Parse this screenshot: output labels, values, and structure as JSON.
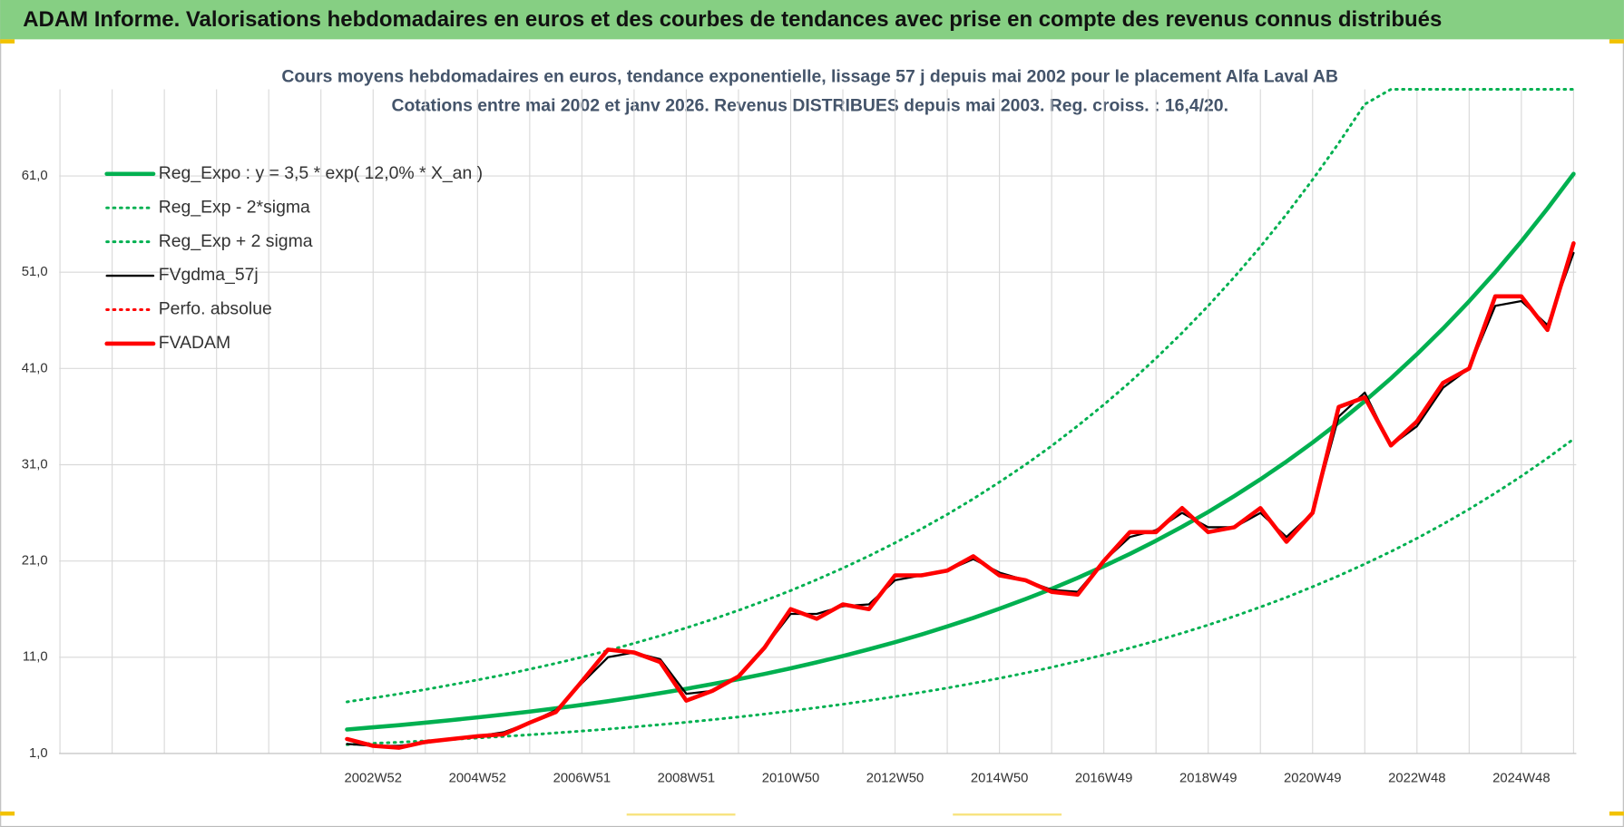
{
  "header": {
    "title": "ADAM Informe. Valorisations hebdomadaires en euros et des courbes de tendances avec prise en compte des revenus connus distribués"
  },
  "chart_data": {
    "type": "line",
    "title": "Cours moyens hebdomadaires en euros, tendance exponentielle, lissage 57 j depuis mai 2002 pour le placement Alfa Laval AB",
    "subtitle": "Cotations entre mai 2002 et janv 2026. Revenus DISTRIBUES depuis mai 2003. Reg. croiss. : 16,4/20.",
    "categories": [
      null,
      "2002W52",
      null,
      null,
      null,
      "2004W52",
      null,
      null,
      null,
      "2006W51",
      null,
      null,
      null,
      "2008W51",
      null,
      null,
      null,
      "2010W50",
      null,
      null,
      null,
      "2012W50",
      null,
      null,
      null,
      "2014W50",
      null,
      null,
      null,
      "2016W49",
      null,
      null,
      null,
      "2018W49",
      null,
      null,
      null,
      "2020W49",
      null,
      null,
      null,
      "2022W48",
      null,
      null,
      null,
      "2024W48",
      null,
      null
    ],
    "ylim": [
      1,
      70
    ],
    "yticks": [
      {
        "value": 1,
        "label": "1,0"
      },
      {
        "value": 11,
        "label": "11,0"
      },
      {
        "value": 21,
        "label": "21,0"
      },
      {
        "value": 31,
        "label": "31,0"
      },
      {
        "value": 41,
        "label": "41,0"
      },
      {
        "value": 51,
        "label": "51,0"
      },
      {
        "value": 61,
        "label": "61,0"
      }
    ],
    "grid": true,
    "legend": "top-left",
    "series": [
      {
        "name": "Reg_Expo : y = 3,5 * exp( 12,0% *  X_an )",
        "color": "#00b050",
        "style": "thick",
        "values": [
          3.5,
          3.72,
          3.95,
          4.2,
          4.47,
          4.75,
          5.04,
          5.36,
          5.7,
          6.05,
          6.43,
          6.84,
          7.27,
          7.72,
          8.21,
          8.72,
          9.27,
          9.85,
          10.47,
          11.13,
          11.83,
          12.57,
          13.36,
          14.2,
          15.09,
          16.04,
          17.04,
          18.11,
          19.25,
          20.46,
          21.74,
          23.11,
          24.56,
          26.1,
          27.74,
          29.48,
          31.33,
          33.3,
          35.39,
          37.61,
          39.97,
          42.48,
          45.15,
          47.99,
          51.0,
          54.2,
          57.61,
          61.22
        ]
      },
      {
        "name": "Reg_Exp - 2*sigma",
        "color": "#00b050",
        "style": "dotted",
        "values": [
          1.93,
          2.05,
          2.17,
          2.31,
          2.46,
          2.61,
          2.77,
          2.95,
          3.14,
          3.33,
          3.54,
          3.76,
          4.0,
          4.25,
          4.52,
          4.8,
          5.1,
          5.42,
          5.76,
          6.12,
          6.51,
          6.91,
          7.35,
          7.81,
          8.3,
          8.82,
          9.37,
          9.96,
          10.59,
          11.25,
          11.96,
          12.71,
          13.51,
          14.36,
          15.26,
          16.21,
          17.23,
          18.32,
          19.46,
          20.69,
          21.98,
          23.36,
          24.83,
          26.39,
          28.05,
          29.81,
          31.69,
          33.67
        ]
      },
      {
        "name": "Reg_Exp + 2 sigma",
        "color": "#00b050",
        "style": "dotted",
        "values": [
          6.37,
          6.77,
          7.19,
          7.64,
          8.14,
          8.65,
          9.17,
          9.76,
          10.37,
          11.01,
          11.7,
          12.45,
          13.23,
          14.05,
          14.94,
          15.87,
          16.87,
          17.93,
          19.06,
          20.26,
          21.53,
          22.88,
          24.32,
          25.84,
          27.46,
          29.19,
          31.01,
          32.96,
          35.04,
          37.24,
          39.57,
          42.06,
          44.7,
          47.5,
          50.49,
          53.65,
          57.02,
          60.61,
          64.41,
          68.45,
          70,
          70,
          70,
          70,
          70,
          70,
          70,
          70
        ]
      },
      {
        "name": "FVgdma_57j",
        "color": "#000000",
        "style": "thin",
        "values": [
          2.0,
          1.8,
          1.8,
          2.1,
          2.5,
          2.8,
          3.2,
          4.2,
          5.5,
          8.3,
          11.0,
          11.5,
          10.8,
          7.2,
          7.5,
          9.0,
          12.0,
          15.5,
          15.5,
          16.3,
          16.5,
          19.0,
          19.5,
          20.0,
          21.2,
          19.8,
          19.0,
          18.0,
          17.8,
          21.0,
          23.5,
          24.2,
          26.0,
          24.5,
          24.5,
          26.0,
          23.5,
          26.0,
          36.0,
          38.5,
          33.0,
          35.0,
          39.0,
          41.0,
          47.5,
          48.0,
          45.5,
          53.0
        ]
      },
      {
        "name": "Perfo. absolue",
        "color": "#ff0000",
        "style": "dotted",
        "values": [
          2.5,
          1.8,
          1.6,
          2.2,
          2.5,
          2.8,
          3.0,
          4.2,
          5.3,
          8.5,
          11.8,
          11.5,
          10.5,
          6.5,
          7.5,
          9.0,
          12.0,
          16.0,
          15.0,
          16.5,
          16.0,
          19.5,
          19.5,
          20.0,
          21.5,
          19.5,
          19.0,
          17.8,
          17.5,
          21.0,
          24.0,
          24.0,
          26.5,
          24.0,
          24.5,
          26.5,
          23.0,
          26.0,
          37.0,
          38.0,
          33.0,
          35.5,
          39.5,
          41.0,
          48.5,
          48.5,
          45.0,
          54.0
        ]
      },
      {
        "name": "FVADAM",
        "color": "#ff0000",
        "style": "thick",
        "values": [
          2.5,
          1.8,
          1.6,
          2.2,
          2.5,
          2.8,
          3.0,
          4.2,
          5.3,
          8.5,
          11.8,
          11.5,
          10.5,
          6.5,
          7.5,
          9.0,
          12.0,
          16.0,
          15.0,
          16.5,
          16.0,
          19.5,
          19.5,
          20.0,
          21.5,
          19.5,
          19.0,
          17.8,
          17.5,
          21.0,
          24.0,
          24.0,
          26.5,
          24.0,
          24.5,
          26.5,
          23.0,
          26.0,
          37.0,
          38.0,
          33.0,
          35.5,
          39.5,
          41.0,
          48.5,
          48.5,
          45.0,
          54.0
        ]
      }
    ]
  }
}
